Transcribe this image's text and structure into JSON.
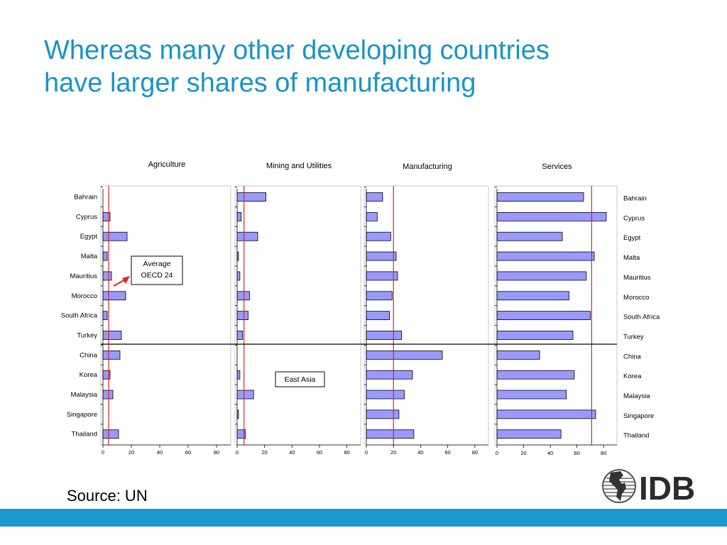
{
  "slide": {
    "title_line1": "Whereas many other developing countries",
    "title_line2": "have larger shares of manufacturing",
    "source": "Source: UN",
    "logo_text": "IDB",
    "accent_color": "#1a93c8",
    "footer_color": "#1b98cf"
  },
  "chart_data": [
    {
      "type": "bar",
      "orientation": "horizontal",
      "title": "Agriculture",
      "categories": [
        "Bahrain",
        "Cyprus",
        "Egypt",
        "Malta",
        "Mauritius",
        "Morocco",
        "South Africa",
        "Turkey",
        "China",
        "Korea",
        "Malaysia",
        "Singapore",
        "Thailand"
      ],
      "values": [
        0,
        5,
        17,
        3,
        6,
        16,
        3,
        13,
        12,
        5,
        7,
        0,
        11
      ],
      "reference_line": 4,
      "xlim": [
        0,
        90
      ],
      "xticks": [
        0,
        20,
        40,
        60,
        80
      ],
      "annotation": {
        "line1": "Average",
        "line2": "OECD 24"
      },
      "bar_color": "#9999ff",
      "reference_color": "#e02020"
    },
    {
      "type": "bar",
      "orientation": "horizontal",
      "title": "Mining and Utilities",
      "categories": [
        "Bahrain",
        "Cyprus",
        "Egypt",
        "Malta",
        "Mauritius",
        "Morocco",
        "South Africa",
        "Turkey",
        "China",
        "Korea",
        "Malaysia",
        "Singapore",
        "Thailand"
      ],
      "values": [
        21,
        3,
        15,
        1,
        2,
        9,
        8,
        4,
        0,
        2,
        12,
        1,
        6
      ],
      "reference_line": 5,
      "xlim": [
        0,
        90
      ],
      "xticks": [
        0,
        20,
        40,
        60,
        80
      ],
      "annotation": {
        "line1": "East Asia"
      },
      "bar_color": "#9999ff",
      "reference_color": "#e02020"
    },
    {
      "type": "bar",
      "orientation": "horizontal",
      "title": "Manufacturing",
      "categories": [
        "Bahrain",
        "Cyprus",
        "Egypt",
        "Malta",
        "Mauritius",
        "Morocco",
        "South Africa",
        "Turkey",
        "China",
        "Korea",
        "Malaysia",
        "Singapore",
        "Thailand"
      ],
      "values": [
        12,
        8,
        18,
        22,
        23,
        19,
        17,
        26,
        56,
        34,
        28,
        24,
        35
      ],
      "reference_line": 20,
      "xlim": [
        0,
        90
      ],
      "xticks": [
        0,
        20,
        40,
        60,
        80
      ],
      "bar_color": "#9999ff",
      "reference_color": "#e02020"
    },
    {
      "type": "bar",
      "orientation": "horizontal",
      "title": "Services",
      "categories": [
        "Bahrain",
        "Cyprus",
        "Egypt",
        "Malta",
        "Mauritius",
        "Morocco",
        "South Africa",
        "Turkey",
        "China",
        "Korea",
        "Malaysia",
        "Singapore",
        "Thailand"
      ],
      "values": [
        65,
        82,
        49,
        73,
        67,
        54,
        70,
        57,
        32,
        58,
        52,
        74,
        48
      ],
      "reference_line": 71,
      "xlim": [
        0,
        90
      ],
      "xticks": [
        0,
        20,
        40,
        60,
        80
      ],
      "bar_color": "#9999ff",
      "reference_color": "#e02020"
    }
  ]
}
